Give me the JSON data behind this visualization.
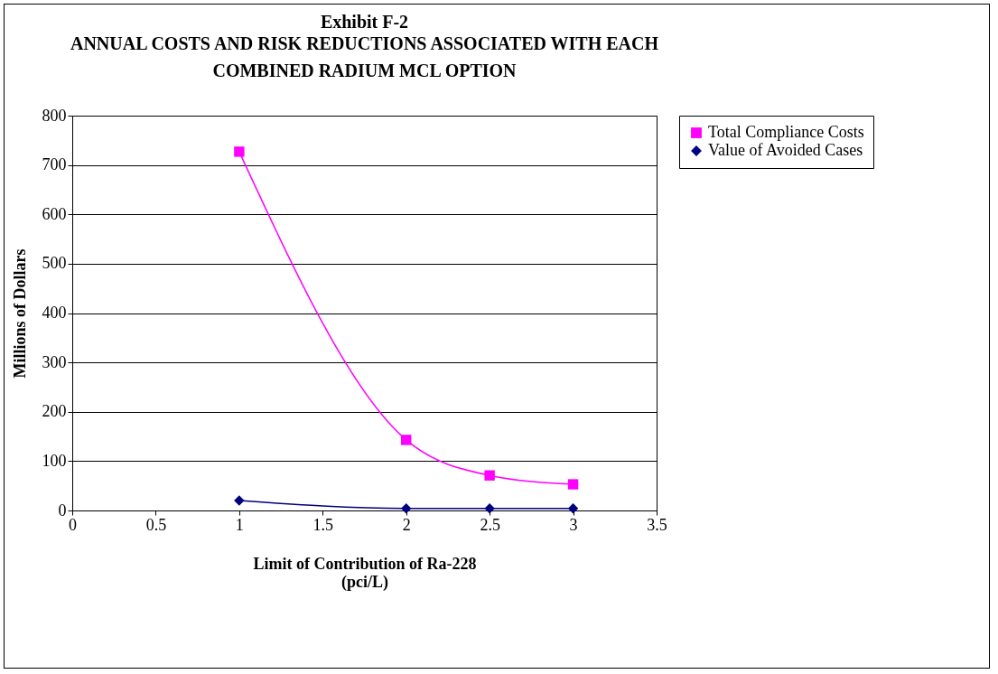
{
  "chart_data": {
    "type": "line",
    "title": "Exhibit F-2",
    "subtitle": "ANNUAL COSTS AND RISK REDUCTIONS ASSOCIATED WITH EACH COMBINED RADIUM MCL OPTION",
    "xlabel": "Limit of Contribution of Ra-228 (pci/L)",
    "ylabel": "Millions of Dollars",
    "x": [
      1,
      2,
      2.5,
      3
    ],
    "series": [
      {
        "name": "Total Compliance Costs",
        "color": "#ff00ff",
        "marker": "square",
        "values": [
          727,
          143,
          71,
          53
        ]
      },
      {
        "name": "Value of Avoided Cases",
        "color": "#000080",
        "marker": "diamond",
        "values": [
          20,
          4,
          4,
          4
        ]
      }
    ],
    "xlim": [
      0,
      3.5
    ],
    "xticks": [
      0,
      0.5,
      1,
      1.5,
      2,
      2.5,
      3,
      3.5
    ],
    "ylim": [
      0,
      800
    ],
    "yticks": [
      0,
      100,
      200,
      300,
      400,
      500,
      600,
      700,
      800
    ],
    "grid": "y",
    "legend": "right"
  }
}
